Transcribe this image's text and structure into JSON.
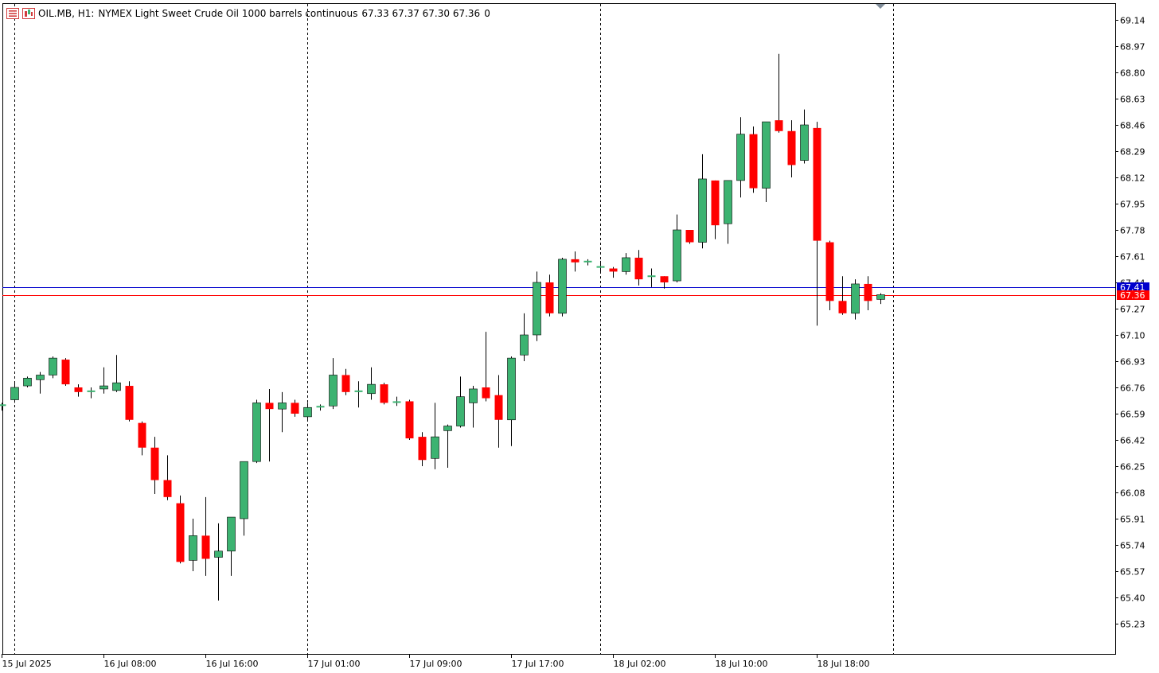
{
  "header": {
    "symbol": "OIL.MB, H1:",
    "description": "NYMEX Light Sweet Crude Oil 1000 barrels continuous",
    "ohlc": "67.33 67.37 67.30 67.36",
    "volume": "0"
  },
  "colors": {
    "bull": "#3cb371",
    "bear": "#ff0000",
    "bid_line": "#0000cd",
    "ask_line": "#ff0000",
    "grid": "#000000",
    "border": "#000000"
  },
  "chart_data": {
    "type": "candlestick",
    "ylim": [
      65.09,
      69.23
    ],
    "y_ticks": [
      "69.14",
      "68.97",
      "68.80",
      "68.63",
      "68.46",
      "68.29",
      "68.12",
      "67.95",
      "67.78",
      "67.61",
      "67.44",
      "67.27",
      "67.10",
      "66.93",
      "66.76",
      "66.59",
      "66.42",
      "66.25",
      "66.08",
      "65.91",
      "65.74",
      "65.57",
      "65.40",
      "65.23"
    ],
    "x_labels": [
      {
        "index": 0,
        "text": "15 Jul 2025"
      },
      {
        "index": 8,
        "text": "16 Jul 08:00"
      },
      {
        "index": 16,
        "text": "16 Jul 16:00"
      },
      {
        "index": 24,
        "text": "17 Jul 01:00"
      },
      {
        "index": 32,
        "text": "17 Jul 09:00"
      },
      {
        "index": 40,
        "text": "17 Jul 17:00"
      },
      {
        "index": 48,
        "text": "18 Jul 02:00"
      },
      {
        "index": 56,
        "text": "18 Jul 10:00"
      },
      {
        "index": 64,
        "text": "18 Jul 18:00"
      }
    ],
    "day_separators": [
      1,
      24,
      47,
      70
    ],
    "price_levels": [
      {
        "name": "bid",
        "value": 67.41,
        "label": "67.41"
      },
      {
        "name": "last",
        "value": 67.36,
        "label": "67.36"
      }
    ],
    "candles": [
      {
        "o": 66.64,
        "h": 66.66,
        "l": 66.61,
        "c": 66.65
      },
      {
        "o": 66.68,
        "h": 66.8,
        "l": 66.66,
        "c": 66.76
      },
      {
        "o": 66.77,
        "h": 66.83,
        "l": 66.76,
        "c": 66.82
      },
      {
        "o": 66.81,
        "h": 66.86,
        "l": 66.72,
        "c": 66.84
      },
      {
        "o": 66.84,
        "h": 66.96,
        "l": 66.82,
        "c": 66.95
      },
      {
        "o": 66.94,
        "h": 66.95,
        "l": 66.77,
        "c": 66.78
      },
      {
        "o": 66.76,
        "h": 66.78,
        "l": 66.7,
        "c": 66.73
      },
      {
        "o": 66.73,
        "h": 66.76,
        "l": 66.69,
        "c": 66.74
      },
      {
        "o": 66.75,
        "h": 66.89,
        "l": 66.72,
        "c": 66.77
      },
      {
        "o": 66.74,
        "h": 66.97,
        "l": 66.73,
        "c": 66.79
      },
      {
        "o": 66.77,
        "h": 66.8,
        "l": 66.54,
        "c": 66.55
      },
      {
        "o": 66.53,
        "h": 66.54,
        "l": 66.32,
        "c": 66.37
      },
      {
        "o": 66.37,
        "h": 66.44,
        "l": 66.07,
        "c": 66.16
      },
      {
        "o": 66.16,
        "h": 66.32,
        "l": 66.03,
        "c": 66.05
      },
      {
        "o": 66.01,
        "h": 66.06,
        "l": 65.62,
        "c": 65.63
      },
      {
        "o": 65.64,
        "h": 65.91,
        "l": 65.57,
        "c": 65.8
      },
      {
        "o": 65.8,
        "h": 66.05,
        "l": 65.54,
        "c": 65.65
      },
      {
        "o": 65.66,
        "h": 65.88,
        "l": 65.38,
        "c": 65.7
      },
      {
        "o": 65.7,
        "h": 65.91,
        "l": 65.54,
        "c": 65.92
      },
      {
        "o": 65.91,
        "h": 66.27,
        "l": 65.8,
        "c": 66.28
      },
      {
        "o": 66.28,
        "h": 66.68,
        "l": 66.27,
        "c": 66.66
      },
      {
        "o": 66.66,
        "h": 66.75,
        "l": 66.28,
        "c": 66.62
      },
      {
        "o": 66.62,
        "h": 66.73,
        "l": 66.47,
        "c": 66.66
      },
      {
        "o": 66.66,
        "h": 66.68,
        "l": 66.57,
        "c": 66.59
      },
      {
        "o": 66.57,
        "h": 66.66,
        "l": 66.55,
        "c": 66.63
      },
      {
        "o": 66.63,
        "h": 66.65,
        "l": 66.61,
        "c": 66.64
      },
      {
        "o": 66.64,
        "h": 66.95,
        "l": 66.62,
        "c": 66.84
      },
      {
        "o": 66.84,
        "h": 66.88,
        "l": 66.71,
        "c": 66.73
      },
      {
        "o": 66.73,
        "h": 66.8,
        "l": 66.63,
        "c": 66.74
      },
      {
        "o": 66.72,
        "h": 66.89,
        "l": 66.68,
        "c": 66.78
      },
      {
        "o": 66.78,
        "h": 66.79,
        "l": 66.65,
        "c": 66.66
      },
      {
        "o": 66.66,
        "h": 66.7,
        "l": 66.64,
        "c": 66.67
      },
      {
        "o": 66.67,
        "h": 66.68,
        "l": 66.42,
        "c": 66.43
      },
      {
        "o": 66.44,
        "h": 66.47,
        "l": 66.25,
        "c": 66.29
      },
      {
        "o": 66.3,
        "h": 66.66,
        "l": 66.23,
        "c": 66.44
      },
      {
        "o": 66.48,
        "h": 66.52,
        "l": 66.24,
        "c": 66.51
      },
      {
        "o": 66.51,
        "h": 66.83,
        "l": 66.5,
        "c": 66.7
      },
      {
        "o": 66.66,
        "h": 66.77,
        "l": 66.5,
        "c": 66.75
      },
      {
        "o": 66.76,
        "h": 67.12,
        "l": 66.67,
        "c": 66.69
      },
      {
        "o": 66.71,
        "h": 66.84,
        "l": 66.37,
        "c": 66.55
      },
      {
        "o": 66.55,
        "h": 66.96,
        "l": 66.38,
        "c": 66.95
      },
      {
        "o": 66.97,
        "h": 67.24,
        "l": 66.93,
        "c": 67.1
      },
      {
        "o": 67.1,
        "h": 67.51,
        "l": 67.06,
        "c": 67.44
      },
      {
        "o": 67.44,
        "h": 67.49,
        "l": 67.22,
        "c": 67.24
      },
      {
        "o": 67.24,
        "h": 67.6,
        "l": 67.22,
        "c": 67.59
      },
      {
        "o": 67.59,
        "h": 67.64,
        "l": 67.51,
        "c": 67.57
      },
      {
        "o": 67.57,
        "h": 67.59,
        "l": 67.55,
        "c": 67.58
      },
      {
        "o": 67.54,
        "h": 67.58,
        "l": 67.5,
        "c": 67.54
      },
      {
        "o": 67.53,
        "h": 67.54,
        "l": 67.47,
        "c": 67.51
      },
      {
        "o": 67.51,
        "h": 67.63,
        "l": 67.49,
        "c": 67.6
      },
      {
        "o": 67.6,
        "h": 67.65,
        "l": 67.42,
        "c": 67.46
      },
      {
        "o": 67.48,
        "h": 67.53,
        "l": 67.41,
        "c": 67.48
      },
      {
        "o": 67.48,
        "h": 67.48,
        "l": 67.4,
        "c": 67.44
      },
      {
        "o": 67.45,
        "h": 67.88,
        "l": 67.44,
        "c": 67.78
      },
      {
        "o": 67.78,
        "h": 67.78,
        "l": 67.69,
        "c": 67.7
      },
      {
        "o": 67.7,
        "h": 68.27,
        "l": 67.66,
        "c": 68.11
      },
      {
        "o": 68.1,
        "h": 68.1,
        "l": 67.72,
        "c": 67.81
      },
      {
        "o": 67.82,
        "h": 68.1,
        "l": 67.69,
        "c": 68.1
      },
      {
        "o": 68.1,
        "h": 68.51,
        "l": 67.99,
        "c": 68.4
      },
      {
        "o": 68.4,
        "h": 68.45,
        "l": 68.02,
        "c": 68.05
      },
      {
        "o": 68.05,
        "h": 68.48,
        "l": 67.96,
        "c": 68.48
      },
      {
        "o": 68.49,
        "h": 68.92,
        "l": 68.41,
        "c": 68.42
      },
      {
        "o": 68.42,
        "h": 68.49,
        "l": 68.12,
        "c": 68.2
      },
      {
        "o": 68.23,
        "h": 68.56,
        "l": 68.21,
        "c": 68.46
      },
      {
        "o": 68.44,
        "h": 68.48,
        "l": 67.16,
        "c": 67.71
      },
      {
        "o": 67.7,
        "h": 67.71,
        "l": 67.26,
        "c": 67.32
      },
      {
        "o": 67.32,
        "h": 67.48,
        "l": 67.23,
        "c": 67.24
      },
      {
        "o": 67.24,
        "h": 67.46,
        "l": 67.2,
        "c": 67.43
      },
      {
        "o": 67.43,
        "h": 67.48,
        "l": 67.26,
        "c": 67.32
      },
      {
        "o": 67.33,
        "h": 67.37,
        "l": 67.3,
        "c": 67.36
      }
    ]
  }
}
